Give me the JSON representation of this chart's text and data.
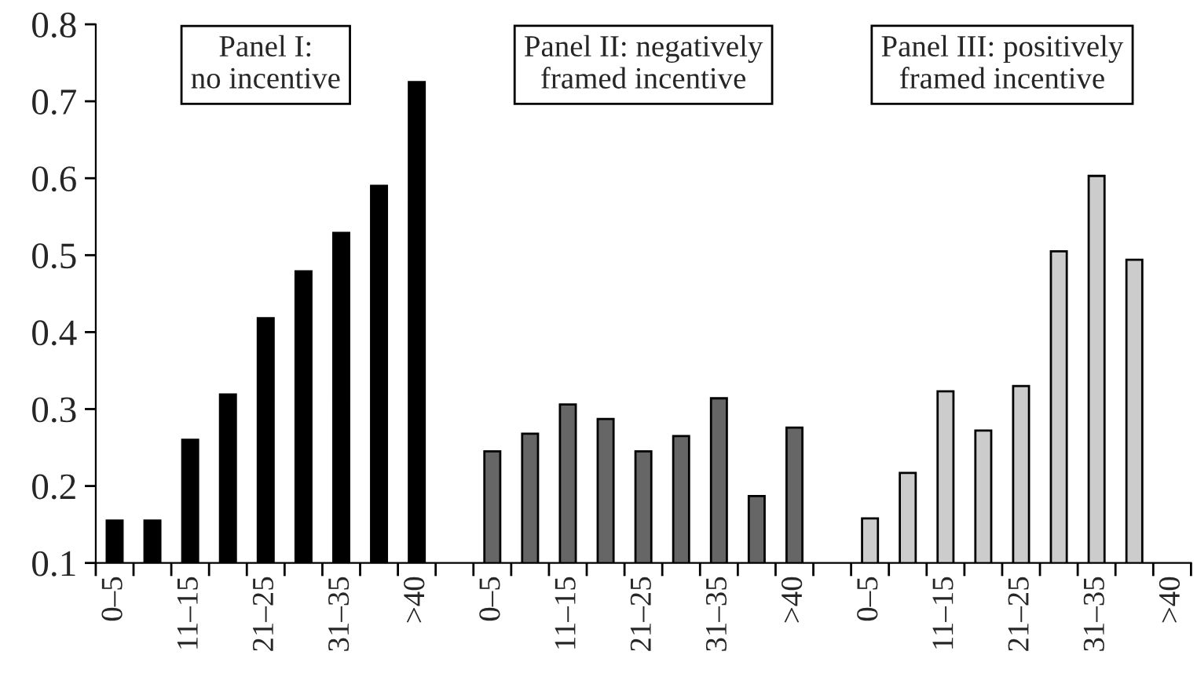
{
  "chart_data": {
    "type": "bar",
    "categories": [
      "0–5",
      null,
      "11–15",
      null,
      "21–25",
      null,
      "31–35",
      null,
      ">40",
      null,
      "0–5",
      null,
      "11–15",
      null,
      "21–25",
      null,
      "31–35",
      null,
      ">40",
      null,
      "0–5",
      null,
      "11–15",
      null,
      "21–25",
      null,
      "31–35",
      null,
      ">40"
    ],
    "series": [
      {
        "color": "#000000",
        "values": [
          0.155,
          0.155,
          0.26,
          0.319,
          0.418,
          0.479,
          0.529,
          0.59,
          0.725,
          null,
          null,
          null,
          null,
          null,
          null,
          null,
          null,
          null,
          null,
          null,
          null,
          null,
          null,
          null,
          null,
          null,
          null,
          null,
          null
        ]
      },
      {
        "color": "#666666",
        "values": [
          null,
          null,
          null,
          null,
          null,
          null,
          null,
          null,
          null,
          null,
          0.245,
          0.268,
          0.306,
          0.287,
          0.245,
          0.265,
          0.314,
          0.187,
          0.276,
          null,
          null,
          null,
          null,
          null,
          null,
          null,
          null,
          null,
          null
        ]
      },
      {
        "color": "#cccccc",
        "values": [
          null,
          null,
          null,
          null,
          null,
          null,
          null,
          null,
          null,
          null,
          null,
          null,
          null,
          null,
          null,
          null,
          null,
          null,
          null,
          null,
          0.158,
          0.217,
          0.323,
          0.272,
          0.33,
          0.505,
          0.603,
          0.494,
          null
        ]
      }
    ],
    "ylim": [
      0.1,
      0.8
    ],
    "yticks": [
      0.1,
      0.2,
      0.3,
      0.4,
      0.5,
      0.6,
      0.7,
      0.8
    ],
    "annotations": [
      "Panel I:\nno incentive",
      "Panel II: negatively\nframed incentive",
      "Panel III: positively\nframed incentive"
    ],
    "grid": false,
    "legend": false
  }
}
